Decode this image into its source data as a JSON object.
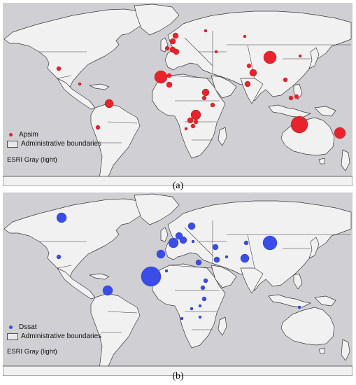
{
  "panels": [
    {
      "id": "a",
      "caption": "(a)",
      "legend_series": "Apsim",
      "legend_boundaries": "Administrative boundaries",
      "basemap": "ESRI Gray (light)",
      "point_color": "#e8232b",
      "point_stroke": "#9a1418"
    },
    {
      "id": "b",
      "caption": "(b)",
      "legend_series": "Dssat",
      "legend_boundaries": "Administrative boundaries",
      "basemap": "ESRI Gray (light)",
      "point_color": "#3a4de8",
      "point_stroke": "#1f2a9a"
    }
  ],
  "colors": {
    "ocean": "#cfcfd4",
    "land": "#f1f1f1",
    "boundary": "#3a3a3a"
  }
}
